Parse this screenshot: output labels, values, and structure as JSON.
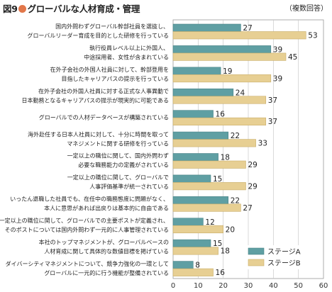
{
  "header": {
    "figure_number": "図9",
    "title": "グローバルな人材育成・管理",
    "note": "（複数回答）"
  },
  "colors": {
    "stage_a": "#5f9fa3",
    "stage_b": "#e7cf93",
    "title_dot": "#e2774a"
  },
  "chart_data": {
    "type": "bar",
    "orientation": "horizontal",
    "categories": [
      [
        "国内外問わずグローバル幹部社員を選抜し、",
        "グローバルリーダー育成を目的とした研修を行っている"
      ],
      [
        "執行役員レベル以上に外国人、",
        "中途採用者、女性が含まれている"
      ],
      [
        "在外子会社の外国人社員に対して、幹部登用を",
        "目指したキャリアパスの提示を行っている"
      ],
      [
        "在外子会社の外国人社員に対する正式な人事異動で",
        "日本勤務となるキャリアパスの提示が現実的に可能である"
      ],
      [
        "グローバルでの人材データベースが構築されている"
      ],
      [
        "海外赴任する日本人社員に対して、十分に時間を取って",
        "マネジメントに関する研修を行っている"
      ],
      [
        "一定以上の職位に関して、国内外問わず",
        "必要な職務能力の定義がされている"
      ],
      [
        "一定以上の職位に関して、グローバルで",
        "人事評価基準が統一されている"
      ],
      [
        "いったん退職した社員でも、在任中の職務態度に問題がなく、",
        "本人に意思があれば出戻りは基本的に自由である"
      ],
      [
        "一定以上の職位に関して、グローバルでの主要ポストが定義され、",
        "そのポストについては国内外問わず一元的に人事管理されている"
      ],
      [
        "本社のトップマネジメントが、グローバルベースの",
        "人材育成に関して具体的な数値目標を掲げている"
      ],
      [
        "ダイバーシティマネジメントについて、競争力強化の一環として",
        "グローバルに一元的に行う機能が整備されている"
      ]
    ],
    "series": [
      {
        "name": "ステージA",
        "values": [
          27,
          39,
          19,
          24,
          16,
          22,
          18,
          15,
          22,
          12,
          15,
          8
        ]
      },
      {
        "name": "ステージB",
        "values": [
          53,
          45,
          39,
          37,
          37,
          33,
          29,
          29,
          27,
          20,
          18,
          16
        ]
      }
    ],
    "xlim": [
      0,
      60
    ],
    "xticks": [
      0,
      10,
      20,
      30,
      40,
      50,
      60
    ],
    "grid": true,
    "legend_position": "bottom-right"
  }
}
